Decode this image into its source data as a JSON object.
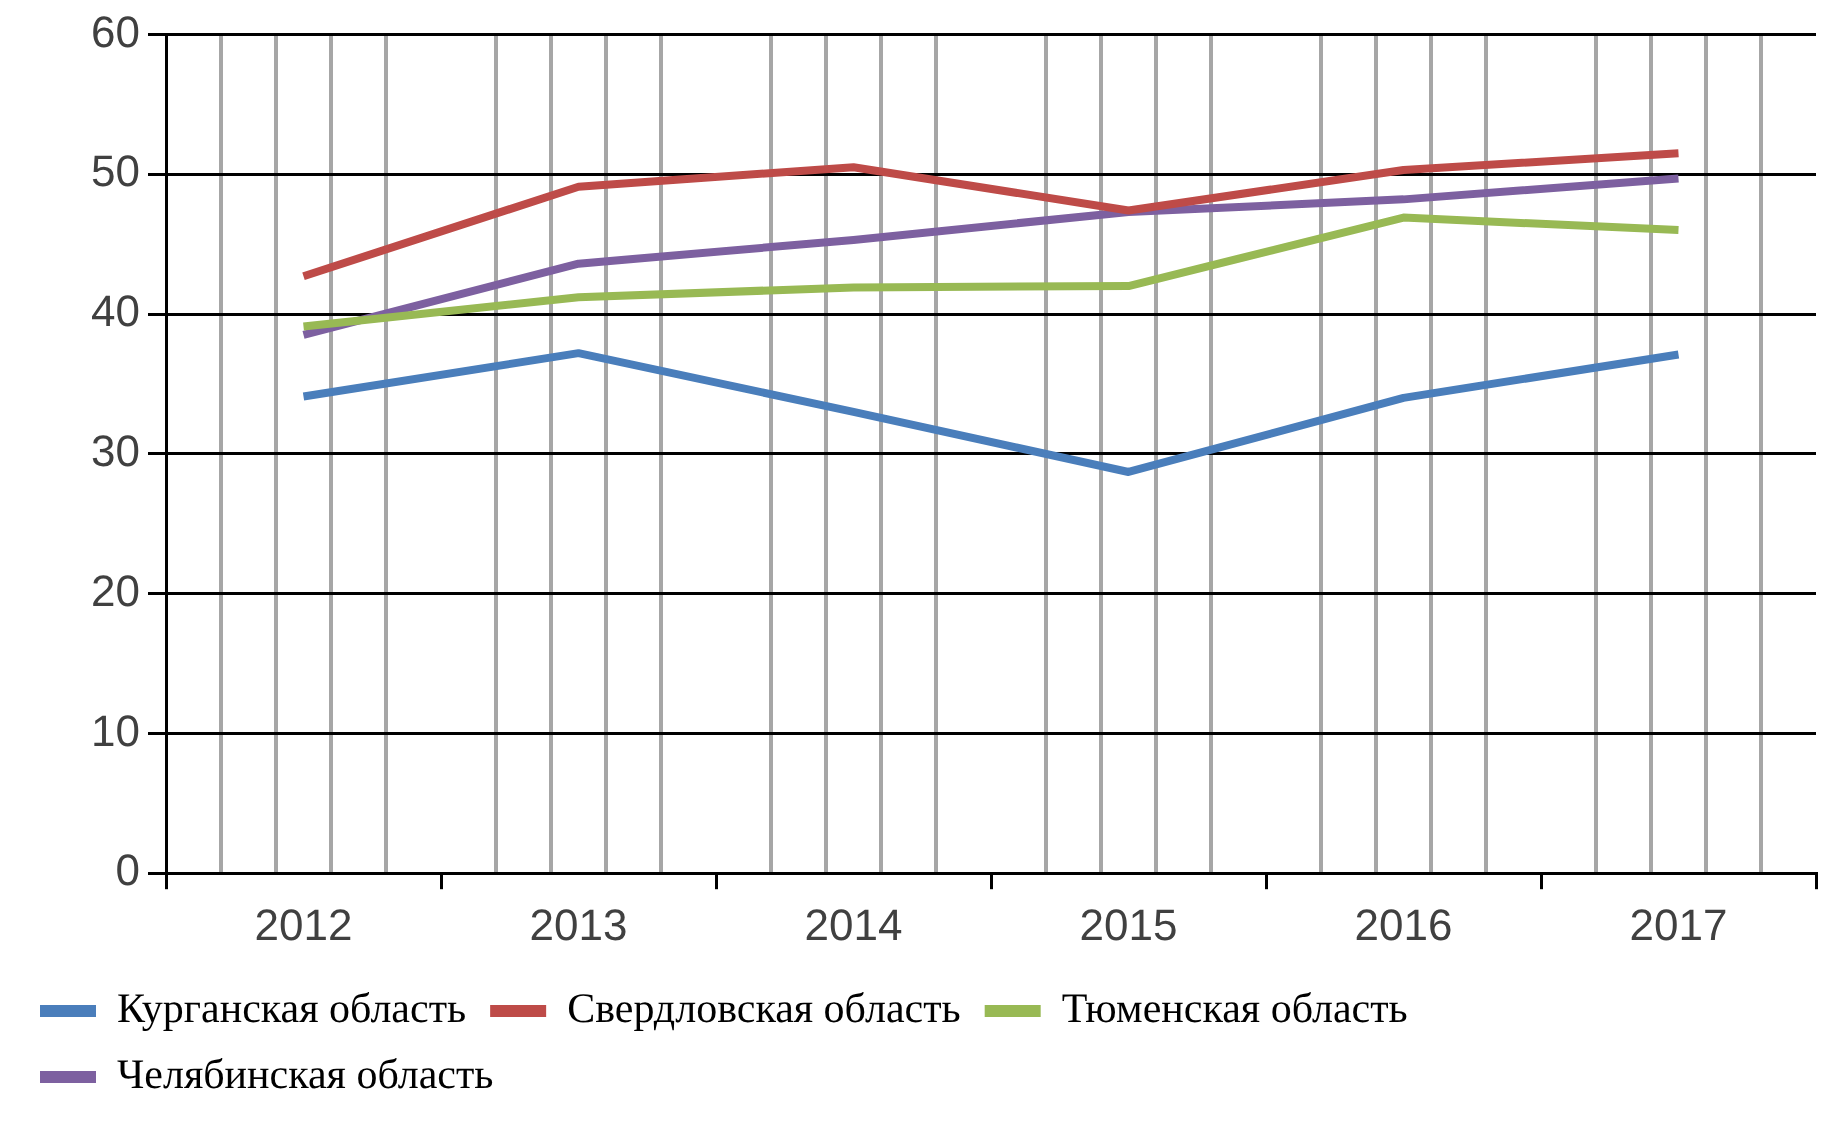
{
  "chart_data": {
    "type": "line",
    "categories": [
      "2012",
      "2013",
      "2014",
      "2015",
      "2016",
      "2017"
    ],
    "series": [
      {
        "name": "Курганская область",
        "color": "#4a7ebb",
        "values": [
          34.1,
          37.2,
          33.0,
          28.7,
          34.0,
          37.1
        ]
      },
      {
        "name": "Свердловская область",
        "color": "#be4b48",
        "values": [
          42.7,
          49.1,
          50.5,
          47.4,
          50.3,
          51.5
        ]
      },
      {
        "name": "Тюменская область",
        "color": "#98b954",
        "values": [
          39.1,
          41.2,
          41.9,
          42.0,
          46.9,
          46.0
        ]
      },
      {
        "name": "Челябинская область",
        "color": "#7d60a0",
        "values": [
          38.5,
          43.6,
          45.3,
          47.3,
          48.2,
          49.7
        ]
      }
    ],
    "ylim": [
      0,
      60
    ],
    "yticks": [
      0,
      10,
      20,
      30,
      40,
      50,
      60
    ],
    "grid": true,
    "legend": "bottom left",
    "marker": "none",
    "line_style": "solid"
  }
}
